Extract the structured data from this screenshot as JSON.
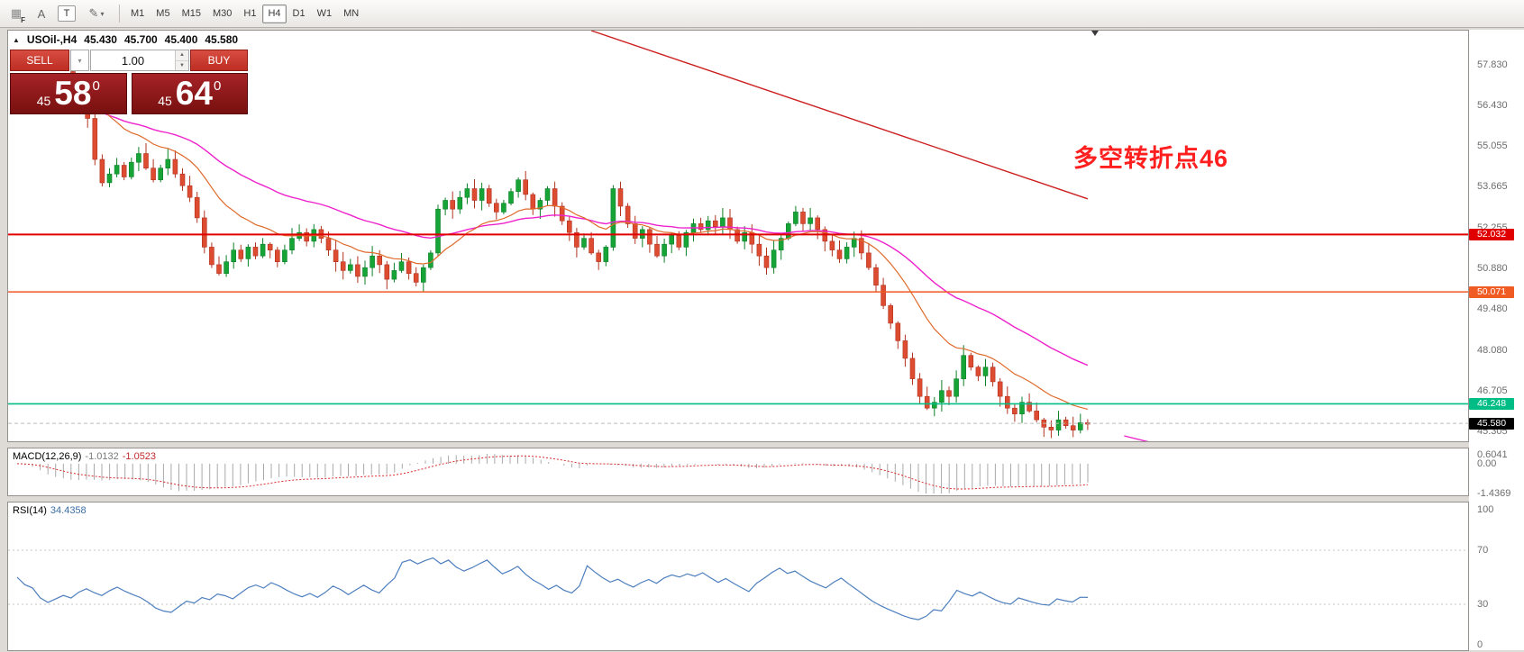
{
  "toolbar": {
    "grid_sub": "F",
    "text_tool": "A",
    "textbox_tool": "T",
    "pencil_glyph": "✎",
    "caret_glyph": "▾",
    "timeframes": [
      {
        "label": "M1",
        "active": false
      },
      {
        "label": "M5",
        "active": false
      },
      {
        "label": "M15",
        "active": false
      },
      {
        "label": "M30",
        "active": false
      },
      {
        "label": "H1",
        "active": false
      },
      {
        "label": "H4",
        "active": true
      },
      {
        "label": "D1",
        "active": false
      },
      {
        "label": "W1",
        "active": false
      },
      {
        "label": "MN",
        "active": false
      }
    ]
  },
  "chart": {
    "collapse_glyph": "▲",
    "symbol_period": "USOil-,H4",
    "ohlc": {
      "open": "45.430",
      "high": "45.700",
      "low": "45.400",
      "close": "45.580"
    },
    "annotation": "多空转折点46",
    "levels": [
      {
        "value": "52.032",
        "num": 52.032,
        "color": "#e00000"
      },
      {
        "value": "50.071",
        "num": 50.071,
        "color": "#f05a23"
      },
      {
        "value": "46.248",
        "num": 46.248,
        "color": "#00bd86"
      },
      {
        "value": "45.580",
        "num": 45.58,
        "color": "#000000",
        "dashed": true
      }
    ]
  },
  "trade": {
    "sell_label": "SELL",
    "buy_label": "BUY",
    "volume": "1.00",
    "sell_small": "45",
    "sell_big": "58",
    "sell_sup": "0",
    "buy_small": "45",
    "buy_big": "64",
    "buy_sup": "0"
  },
  "macd": {
    "label": "MACD(12,26,9)",
    "value1": "-1.0132",
    "value2": "-1.0523",
    "axis": [
      "0.6041",
      "0.00",
      "-1.4369"
    ]
  },
  "rsi": {
    "label": "RSI(14)",
    "value": "34.4358",
    "axis": [
      "100",
      "70",
      "30",
      "0"
    ]
  },
  "chart_data": {
    "type": "candlestick",
    "symbol": "USOil-",
    "timeframe": "H4",
    "current_ohlc": {
      "open": 45.43,
      "high": 45.7,
      "low": 45.4,
      "close": 45.58
    },
    "price_axis_ticks": [
      "57.830",
      "56.430",
      "55.055",
      "53.665",
      "52.255",
      "50.880",
      "49.480",
      "48.080",
      "46.705",
      "45.305"
    ],
    "horizontal_levels": [
      52.032,
      50.071,
      46.248,
      45.58
    ],
    "closes": [
      57.2,
      56.4,
      56.0,
      54.6,
      53.8,
      54.1,
      54.4,
      54.0,
      54.5,
      54.8,
      54.3,
      53.9,
      54.3,
      54.6,
      54.1,
      53.7,
      53.3,
      52.6,
      51.6,
      51.0,
      50.7,
      51.1,
      51.5,
      51.2,
      51.6,
      51.3,
      51.7,
      51.5,
      51.1,
      51.5,
      51.9,
      52.1,
      51.8,
      52.2,
      51.9,
      51.5,
      51.1,
      50.8,
      51.0,
      50.6,
      50.9,
      51.3,
      51.0,
      50.5,
      50.8,
      51.1,
      50.7,
      50.4,
      50.9,
      51.4,
      52.9,
      53.2,
      52.9,
      53.3,
      53.6,
      53.2,
      53.6,
      53.1,
      52.8,
      53.1,
      53.5,
      53.9,
      53.4,
      52.9,
      53.2,
      53.6,
      53.0,
      52.5,
      52.1,
      51.6,
      51.9,
      51.4,
      51.1,
      51.6,
      53.6,
      53.0,
      52.4,
      51.9,
      52.2,
      51.7,
      51.3,
      51.7,
      52.0,
      51.6,
      52.1,
      52.4,
      52.2,
      52.5,
      52.3,
      52.6,
      52.2,
      51.8,
      52.1,
      51.7,
      51.3,
      50.9,
      51.5,
      51.9,
      52.4,
      52.8,
      52.4,
      52.6,
      52.2,
      51.8,
      51.5,
      51.2,
      51.6,
      51.9,
      51.4,
      50.9,
      50.3,
      49.6,
      49.0,
      48.4,
      47.8,
      47.1,
      46.5,
      46.1,
      46.3,
      46.7,
      46.5,
      47.1,
      47.9,
      47.5,
      47.2,
      47.5,
      47.0,
      46.5,
      46.1,
      45.9,
      46.3,
      46.0,
      45.7,
      45.45,
      45.35,
      45.7,
      45.5,
      45.35,
      45.6,
      45.58
    ],
    "trendline_red": {
      "from_bar": 71,
      "from_price": 59.0,
      "to_bar": 139,
      "to_price": 53.25
    },
    "magenta_segment": {
      "from_bar": 144,
      "from_price": 45.15,
      "to_bar": 150.5,
      "to_price": 44.75
    },
    "indicators": {
      "macd": {
        "fast": 12,
        "slow": 26,
        "signal": 9,
        "current": -1.0132,
        "signal_current": -1.0523,
        "axis_max": 0.6041,
        "axis_min": -1.4369
      },
      "rsi": {
        "period": 14,
        "current": 34.4358,
        "levels": [
          70,
          30
        ],
        "range": [
          0,
          100
        ]
      }
    }
  }
}
